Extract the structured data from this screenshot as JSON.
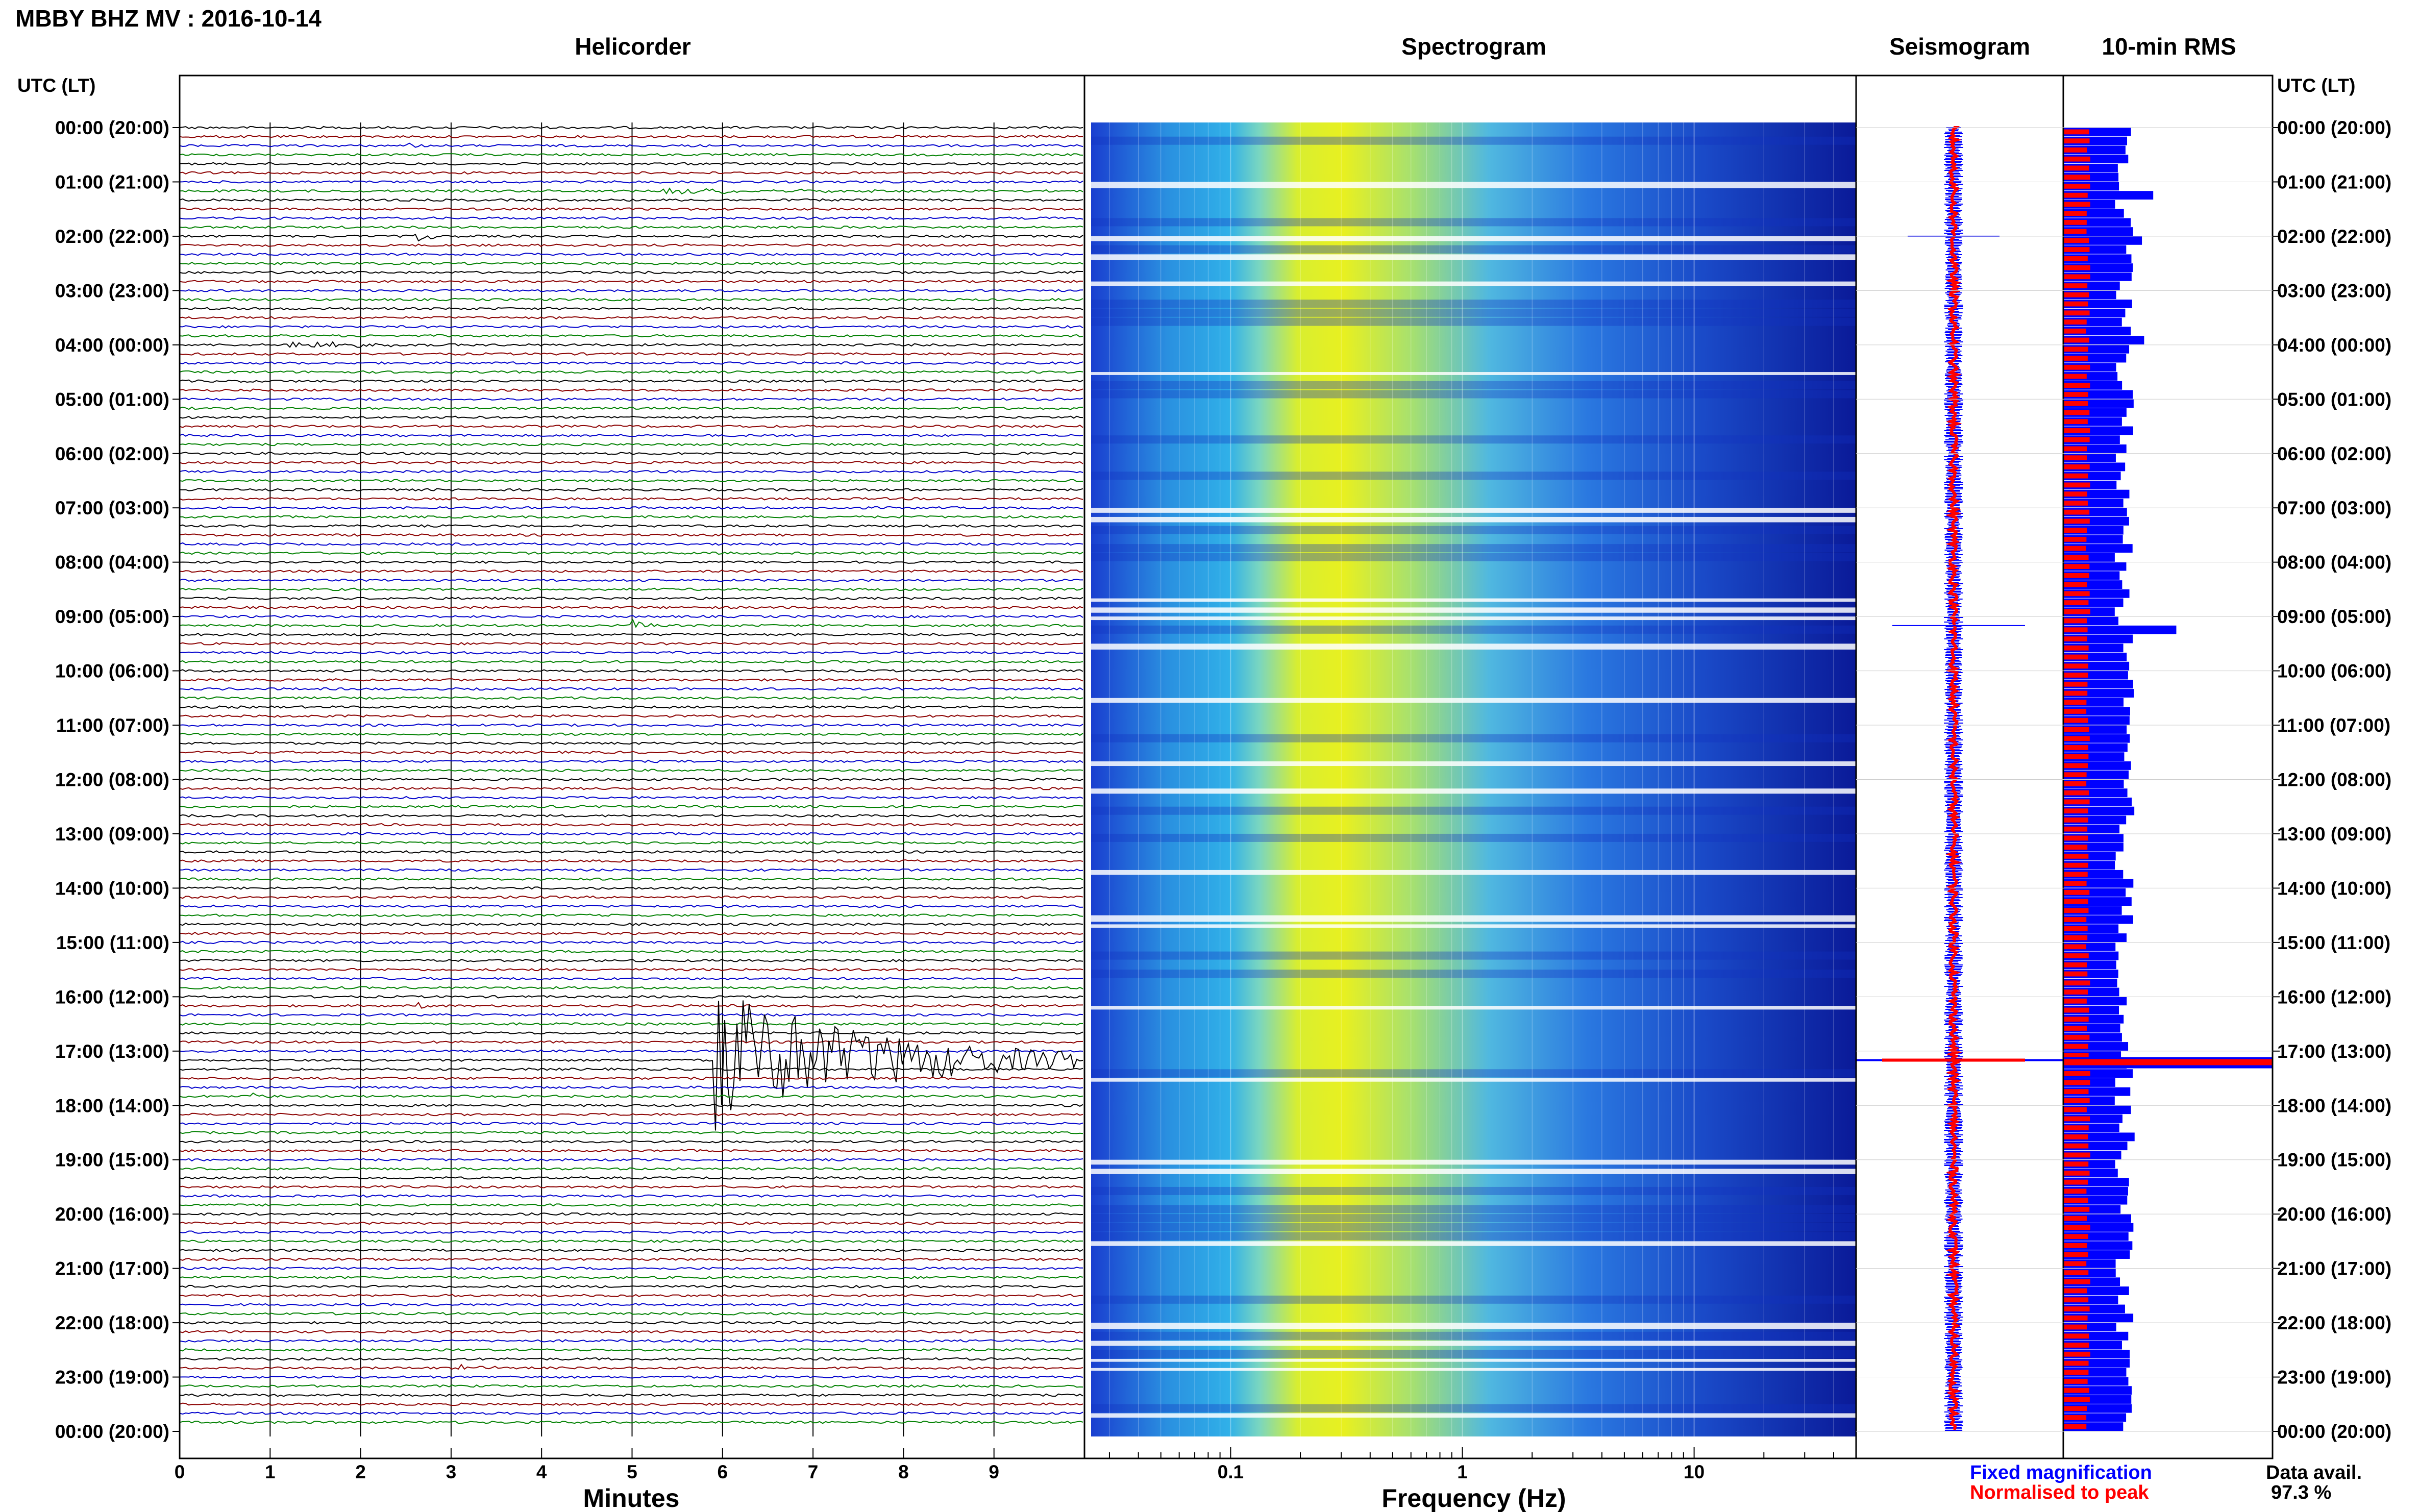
{
  "header": {
    "station_title": "MBBY BHZ MV : 2016-10-14"
  },
  "panels": {
    "helicorder": "Helicorder",
    "spectrogram": "Spectrogram",
    "seismogram": "Seismogram",
    "rms": "10-min RMS"
  },
  "time_axis": {
    "left_label": "UTC (LT)",
    "right_label": "UTC (LT)",
    "ticks": [
      "00:00 (20:00)",
      "01:00 (21:00)",
      "02:00 (22:00)",
      "03:00 (23:00)",
      "04:00 (00:00)",
      "05:00 (01:00)",
      "06:00 (02:00)",
      "07:00 (03:00)",
      "08:00 (04:00)",
      "09:00 (05:00)",
      "10:00 (06:00)",
      "11:00 (07:00)",
      "12:00 (08:00)",
      "13:00 (09:00)",
      "14:00 (10:00)",
      "15:00 (11:00)",
      "16:00 (12:00)",
      "17:00 (13:00)",
      "18:00 (14:00)",
      "19:00 (15:00)",
      "20:00 (16:00)",
      "21:00 (17:00)",
      "22:00 (18:00)",
      "23:00 (19:00)",
      "00:00 (20:00)"
    ]
  },
  "helicorder_axis": {
    "label": "Minutes",
    "ticks": [
      "0",
      "1",
      "2",
      "3",
      "4",
      "5",
      "6",
      "7",
      "8",
      "9"
    ]
  },
  "spectrogram_axis": {
    "label": "Frequency (Hz)",
    "ticks": [
      "0.1",
      "1",
      "10"
    ]
  },
  "legend": {
    "fixed": "Fixed magnification",
    "normalised": "Normalised to peak",
    "availability_label": "Data avail.",
    "availability_value": "97.3 %"
  },
  "colors": {
    "trace_cycle": [
      "#000000",
      "#8b0000",
      "#0000cc",
      "#008000"
    ],
    "fixed": "#0000ff",
    "normalised": "#ff0000",
    "spectrogram_low": "#0a1fb0",
    "spectrogram_mid": "#25a6e8",
    "spectrogram_high": "#e8f020"
  },
  "chart_data": {
    "type": "helicorder",
    "hours": 24,
    "rows_per_hour": 6,
    "minutes_per_row": 10,
    "row_count": 144,
    "events": [
      {
        "row": 2,
        "minute": 2.5,
        "amplitude": 0.3
      },
      {
        "row": 7,
        "minute": 5.3,
        "amplitude": 0.4,
        "duration_min": 3.0
      },
      {
        "row": 12,
        "minute": 2.6,
        "amplitude": 1.2
      },
      {
        "row": 24,
        "minute": 1.2,
        "amplitude": 0.5,
        "duration_min": 1.6
      },
      {
        "row": 55,
        "minute": 5.0,
        "amplitude": 1.1
      },
      {
        "row": 56,
        "minute": 0.2,
        "amplitude": 0.3
      },
      {
        "row": 97,
        "minute": 2.6,
        "amplitude": 0.4
      },
      {
        "row": 103,
        "minute": 5.9,
        "amplitude": 8.0,
        "duration_min": 4.0
      },
      {
        "row": 107,
        "minute": 0.8,
        "amplitude": 0.4
      },
      {
        "row": 137,
        "minute": 3.1,
        "amplitude": 0.5,
        "duration_min": 0.6
      }
    ],
    "rms_peak_row": 103,
    "spectrogram_log_range_hz": [
      0.025,
      50
    ]
  }
}
